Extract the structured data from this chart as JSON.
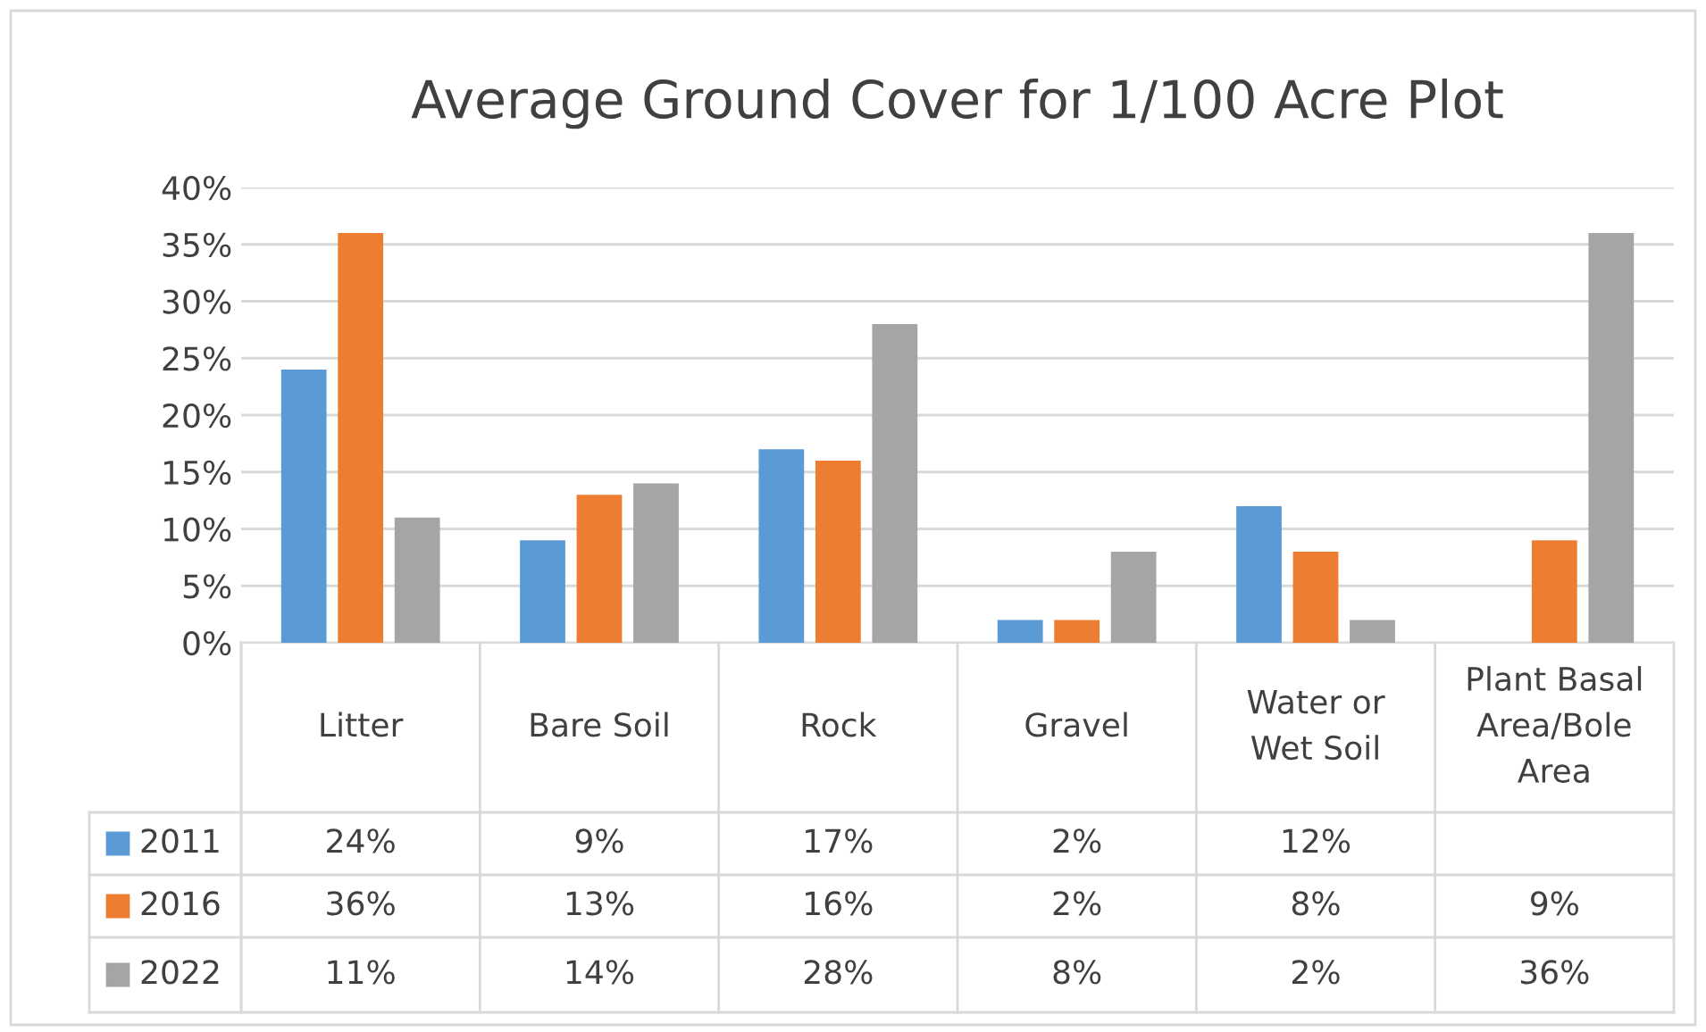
{
  "chart_data": {
    "type": "bar",
    "title": "Average Ground Cover for 1/100 Acre Plot",
    "categories": [
      "Litter",
      "Bare Soil",
      "Rock",
      "Gravel",
      "Water or\nWet Soil",
      "Plant Basal\nArea/Bole\nArea"
    ],
    "series": [
      {
        "name": "2011",
        "color": "#5b9bd5",
        "values": [
          24,
          9,
          17,
          2,
          12,
          null
        ],
        "value_labels": [
          "24%",
          "9%",
          "17%",
          "2%",
          "12%",
          null
        ]
      },
      {
        "name": "2016",
        "color": "#ed7d31",
        "values": [
          36,
          13,
          16,
          2,
          8,
          9
        ],
        "value_labels": [
          "36%",
          "13%",
          "16%",
          "2%",
          "8%",
          "9%"
        ]
      },
      {
        "name": "2022",
        "color": "#a5a5a5",
        "values": [
          11,
          14,
          28,
          8,
          2,
          36
        ],
        "value_labels": [
          "11%",
          "14%",
          "28%",
          "8%",
          "2%",
          "36%"
        ]
      }
    ],
    "ylim": [
      0,
      40
    ],
    "yticks": [
      {
        "value": 0,
        "label": "0%"
      },
      {
        "value": 5,
        "label": "5%"
      },
      {
        "value": 10,
        "label": "10%"
      },
      {
        "value": 15,
        "label": "15%"
      },
      {
        "value": 20,
        "label": "20%"
      },
      {
        "value": 25,
        "label": "25%"
      },
      {
        "value": 30,
        "label": "30%"
      },
      {
        "value": 35,
        "label": "35%"
      },
      {
        "value": 40,
        "label": "40%"
      }
    ],
    "grid": "y",
    "legend": "bottom"
  }
}
